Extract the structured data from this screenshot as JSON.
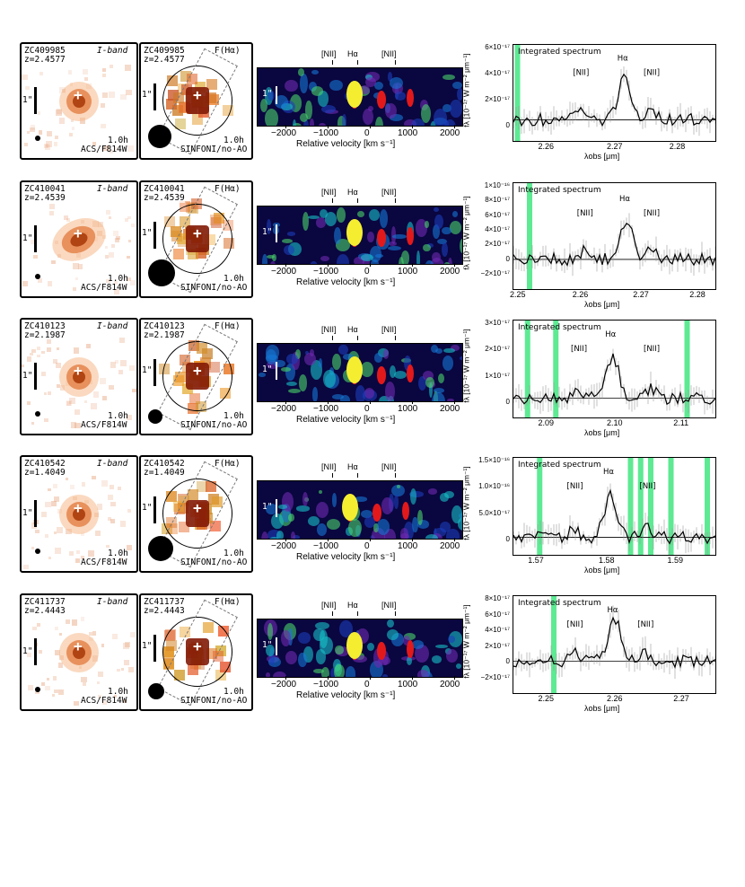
{
  "common": {
    "iband_label": "I-band",
    "iband_time": "1.0h",
    "iband_instr": "ACS/F814W",
    "sin_label": "F(Hα)",
    "sin_time": "1.0h",
    "sin_instr": "SINFONI/no-AO",
    "arcsec": "1\"",
    "vel_lines": [
      "[NII]",
      "Hα",
      "[NII]"
    ],
    "vel_ticks": [
      "−2000",
      "−1000",
      "0",
      "1000",
      "2000"
    ],
    "vel_xlabel": "Relative velocity  [km s⁻¹]",
    "spec_title": "Integrated spectrum",
    "spec_ylabel": "fλ [10⁻¹⁷ W m⁻² μm⁻¹]",
    "spec_xlabel": "λobs  [μm]",
    "spec_lines": [
      "[NII]",
      "Hα",
      "[NII]"
    ],
    "colors": {
      "accent": "#27e36f",
      "orange": "#c8500f",
      "map_bg": "#0a0640"
    }
  },
  "galaxies": [
    {
      "id": "ZC409985",
      "z": "z=2.4577",
      "spec": {
        "yticks": [
          "6×10⁻¹⁷",
          "4×10⁻¹⁷",
          "2×10⁻¹⁷",
          "0"
        ],
        "xticks": [
          "2.26",
          "2.27",
          "2.28"
        ]
      }
    },
    {
      "id": "ZC410041",
      "z": "z=2.4539",
      "spec": {
        "yticks": [
          "1×10⁻¹⁶",
          "8×10⁻¹⁷",
          "6×10⁻¹⁷",
          "4×10⁻¹⁷",
          "2×10⁻¹⁷",
          "0",
          "−2×10⁻¹⁷"
        ],
        "xticks": [
          "2.25",
          "2.26",
          "2.27",
          "2.28"
        ]
      }
    },
    {
      "id": "ZC410123",
      "z": "z=2.1987",
      "spec": {
        "yticks": [
          "3×10⁻¹⁷",
          "2×10⁻¹⁷",
          "1×10⁻¹⁷",
          "0"
        ],
        "xticks": [
          "2.09",
          "2.10",
          "2.11"
        ]
      }
    },
    {
      "id": "ZC410542",
      "z": "z=1.4049",
      "spec": {
        "yticks": [
          "1.5×10⁻¹⁶",
          "1.0×10⁻¹⁶",
          "5.0×10⁻¹⁷",
          "0"
        ],
        "xticks": [
          "1.57",
          "1.58",
          "1.59"
        ]
      }
    },
    {
      "id": "ZC411737",
      "z": "z=2.4443",
      "spec": {
        "yticks": [
          "8×10⁻¹⁷",
          "6×10⁻¹⁷",
          "4×10⁻¹⁷",
          "2×10⁻¹⁷",
          "0",
          "−2×10⁻¹⁷"
        ],
        "xticks": [
          "2.25",
          "2.26",
          "2.27"
        ]
      }
    }
  ]
}
